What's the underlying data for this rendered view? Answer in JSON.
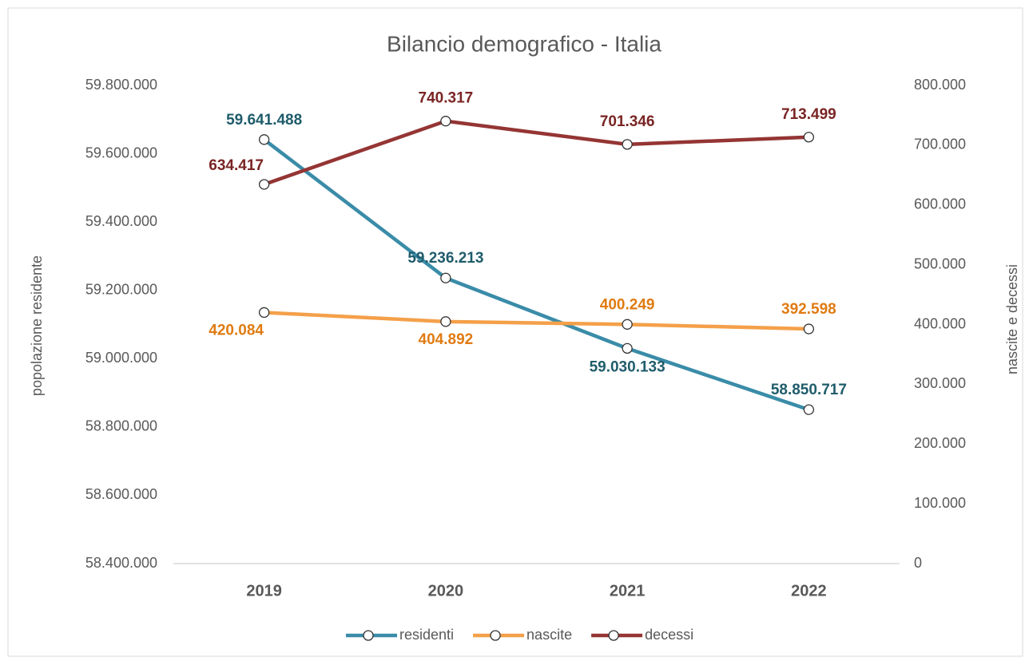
{
  "chart_data": {
    "type": "line",
    "title": "Bilancio demografico - Italia",
    "y_label": "popolazione residente",
    "y2_label": "nascite e decessi",
    "categories": [
      "2019",
      "2020",
      "2021",
      "2022"
    ],
    "ylim": [
      58400000,
      59800000
    ],
    "yticks": [
      {
        "value": 58400000,
        "label": "58.400.000"
      },
      {
        "value": 58600000,
        "label": "58.600.000"
      },
      {
        "value": 58800000,
        "label": "58.800.000"
      },
      {
        "value": 59000000,
        "label": "59.000.000"
      },
      {
        "value": 59200000,
        "label": "59.200.000"
      },
      {
        "value": 59400000,
        "label": "59.400.000"
      },
      {
        "value": 59600000,
        "label": "59.600.000"
      },
      {
        "value": 59800000,
        "label": "59.800.000"
      }
    ],
    "y2lim": [
      0,
      800000
    ],
    "y2ticks": [
      0,
      {
        "value": 100000,
        "label": "100.000"
      },
      {
        "value": 200000,
        "label": "200.000"
      },
      {
        "value": 300000,
        "label": "300.000"
      },
      {
        "value": 400000,
        "label": "400.000"
      },
      {
        "value": 500000,
        "label": "500.000"
      },
      {
        "value": 600000,
        "label": "600.000"
      },
      {
        "value": 700000,
        "label": "700.000"
      },
      {
        "value": 800000,
        "label": "800.000"
      }
    ],
    "legend": "bottom",
    "series": [
      {
        "name": "residenti",
        "color": "#3a8ca8",
        "label_color": "#1f5c6b",
        "axis": "y",
        "values": [
          59641488,
          59236213,
          59030133,
          58850717
        ],
        "value_labels": [
          "59.641.488",
          "59.236.213",
          "59.030.133",
          "58.850.717"
        ]
      },
      {
        "name": "nascite",
        "color": "#f4a04a",
        "label_color": "#e07b12",
        "axis": "y2",
        "values": [
          420084,
          404892,
          400249,
          392598
        ],
        "value_labels": [
          "420.084",
          "404.892",
          "400.249",
          "392.598"
        ]
      },
      {
        "name": "decessi",
        "color": "#943534",
        "label_color": "#7a2424",
        "axis": "y2",
        "values": [
          634417,
          740317,
          701346,
          713499
        ],
        "value_labels": [
          "634.417",
          "740.317",
          "701.346",
          "713.499"
        ]
      }
    ]
  }
}
